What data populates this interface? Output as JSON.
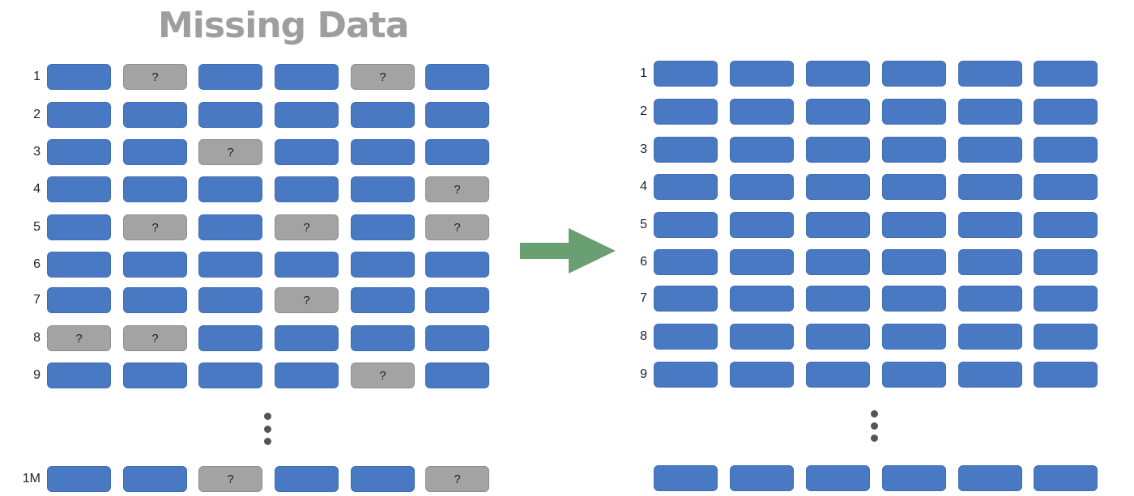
{
  "title": "Missing Data",
  "missing_marker": "?",
  "colors": {
    "filled_cell": "#4a79c4",
    "missing_cell": "#a3a3a3",
    "arrow": "#6aa071",
    "title": "#9e9e9e"
  },
  "icons": {
    "continuation": "vertical-ellipsis-icon",
    "transform": "right-arrow-icon"
  },
  "before": {
    "rows": [
      {
        "label": "1",
        "cells": [
          false,
          true,
          false,
          false,
          true,
          false
        ]
      },
      {
        "label": "2",
        "cells": [
          false,
          false,
          false,
          false,
          false,
          false
        ]
      },
      {
        "label": "3",
        "cells": [
          false,
          false,
          true,
          false,
          false,
          false
        ]
      },
      {
        "label": "4",
        "cells": [
          false,
          false,
          false,
          false,
          false,
          true
        ]
      },
      {
        "label": "5",
        "cells": [
          false,
          true,
          false,
          true,
          false,
          true
        ]
      },
      {
        "label": "6",
        "cells": [
          false,
          false,
          false,
          false,
          false,
          false
        ]
      },
      {
        "label": "7",
        "cells": [
          false,
          false,
          false,
          true,
          false,
          false
        ]
      },
      {
        "label": "8",
        "cells": [
          true,
          true,
          false,
          false,
          false,
          false
        ]
      },
      {
        "label": "9",
        "cells": [
          false,
          false,
          false,
          false,
          true,
          false
        ]
      },
      {
        "label": "1M",
        "cells": [
          false,
          false,
          true,
          false,
          false,
          true
        ]
      }
    ]
  },
  "after": {
    "rows": [
      {
        "label": "1",
        "cells": [
          false,
          false,
          false,
          false,
          false,
          false
        ]
      },
      {
        "label": "2",
        "cells": [
          false,
          false,
          false,
          false,
          false,
          false
        ]
      },
      {
        "label": "3",
        "cells": [
          false,
          false,
          false,
          false,
          false,
          false
        ]
      },
      {
        "label": "4",
        "cells": [
          false,
          false,
          false,
          false,
          false,
          false
        ]
      },
      {
        "label": "5",
        "cells": [
          false,
          false,
          false,
          false,
          false,
          false
        ]
      },
      {
        "label": "6",
        "cells": [
          false,
          false,
          false,
          false,
          false,
          false
        ]
      },
      {
        "label": "7",
        "cells": [
          false,
          false,
          false,
          false,
          false,
          false
        ]
      },
      {
        "label": "8",
        "cells": [
          false,
          false,
          false,
          false,
          false,
          false
        ]
      },
      {
        "label": "9",
        "cells": [
          false,
          false,
          false,
          false,
          false,
          false
        ]
      },
      {
        "label": "",
        "cells": [
          false,
          false,
          false,
          false,
          false,
          false
        ]
      }
    ]
  }
}
